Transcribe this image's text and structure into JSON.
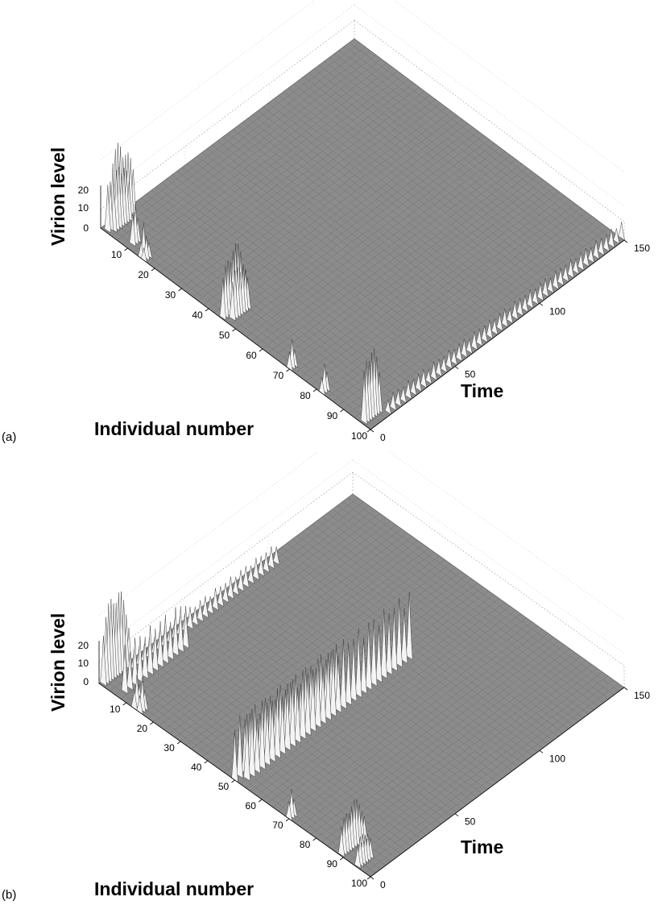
{
  "chart_data": [
    {
      "type": "surface3d",
      "panel": "(a)",
      "xlabel": "Individual number",
      "ylabel": "Time",
      "zlabel": "Virion level",
      "xlim": [
        0,
        100
      ],
      "ylim": [
        0,
        150
      ],
      "zlim": [
        0,
        25
      ],
      "x_ticks": [
        "10",
        "20",
        "30",
        "40",
        "50",
        "60",
        "70",
        "80",
        "90",
        "100"
      ],
      "y_ticks": [
        "0",
        "50",
        "100",
        "150"
      ],
      "z_ticks": [
        "0",
        "10",
        "20"
      ],
      "grid": true,
      "peaks": [
        {
          "individual": 2,
          "time_start": 0,
          "time_end": 16,
          "amplitude": 24
        },
        {
          "individual": 3,
          "time_start": 2,
          "time_end": 12,
          "amplitude": 20
        },
        {
          "individual": 10,
          "time_start": 2,
          "time_end": 6,
          "amplitude": 12
        },
        {
          "individual": 15,
          "time_start": 0,
          "time_end": 3,
          "amplitude": 10
        },
        {
          "individual": 16,
          "time_start": 0,
          "time_end": 3,
          "amplitude": 8
        },
        {
          "individual": 45,
          "time_start": 0,
          "time_end": 14,
          "amplitude": 20
        },
        {
          "individual": 47,
          "time_start": 2,
          "time_end": 12,
          "amplitude": 16
        },
        {
          "individual": 70,
          "time_start": 0,
          "time_end": 3,
          "amplitude": 10
        },
        {
          "individual": 82,
          "time_start": 0,
          "time_end": 3,
          "amplitude": 10
        },
        {
          "individual": 97,
          "time_start": 0,
          "time_end": 10,
          "amplitude": 22
        },
        {
          "individual": 99,
          "time_start": 10,
          "time_end": 150,
          "amplitude": 5
        }
      ]
    },
    {
      "type": "surface3d",
      "panel": "(b)",
      "xlabel": "Individual number",
      "ylabel": "Time",
      "zlabel": "Virion level",
      "xlim": [
        0,
        100
      ],
      "ylim": [
        0,
        150
      ],
      "zlim": [
        0,
        25
      ],
      "x_ticks": [
        "10",
        "20",
        "30",
        "40",
        "50",
        "60",
        "70",
        "80",
        "90",
        "100"
      ],
      "y_ticks": [
        "0",
        "50",
        "100",
        "150"
      ],
      "z_ticks": [
        "0",
        "10",
        "20"
      ],
      "grid": true,
      "peaks": [
        {
          "individual": 1,
          "time_start": 0,
          "time_end": 16,
          "amplitude": 26
        },
        {
          "individual": 3,
          "time_start": 14,
          "time_end": 100,
          "amplitude": 6
        },
        {
          "individual": 7,
          "time_start": 2,
          "time_end": 40,
          "amplitude": 14
        },
        {
          "individual": 13,
          "time_start": 0,
          "time_end": 3,
          "amplitude": 12
        },
        {
          "individual": 15,
          "time_start": 0,
          "time_end": 3,
          "amplitude": 10
        },
        {
          "individual": 50,
          "time_start": 0,
          "time_end": 60,
          "amplitude": 18
        },
        {
          "individual": 52,
          "time_start": 2,
          "time_end": 100,
          "amplitude": 20
        },
        {
          "individual": 70,
          "time_start": 0,
          "time_end": 3,
          "amplitude": 10
        },
        {
          "individual": 89,
          "time_start": 0,
          "time_end": 14,
          "amplitude": 14
        },
        {
          "individual": 95,
          "time_start": 0,
          "time_end": 8,
          "amplitude": 10
        }
      ]
    }
  ]
}
